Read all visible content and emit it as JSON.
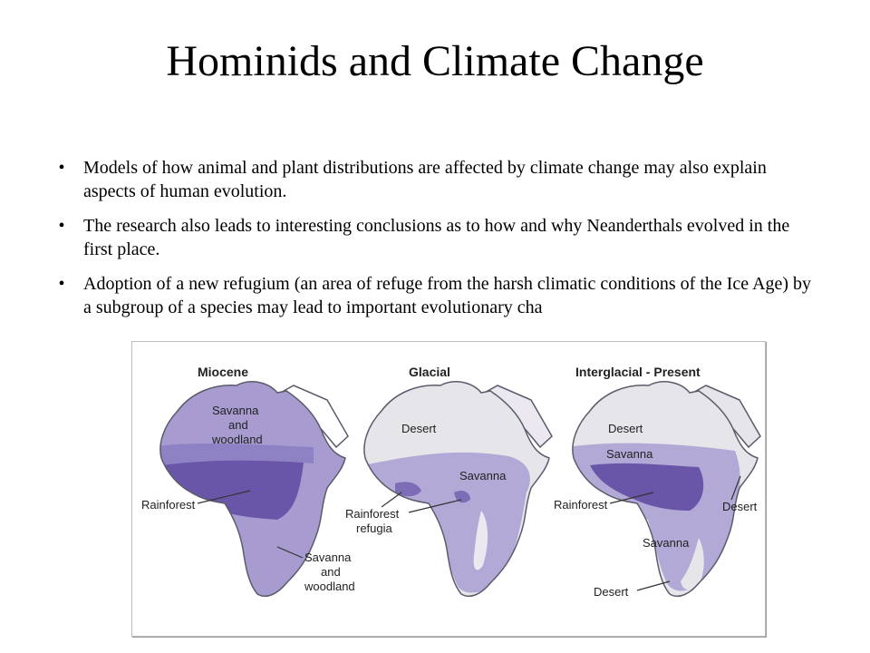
{
  "slide": {
    "title": "Hominids and Climate Change",
    "bullet_char": "•",
    "bullets": [
      "Models of how animal and plant distributions are affected by climate change may also explain aspects of human evolution.",
      "The research also leads to interesting conclusions as to how and why Neanderthals evolved in the first place.",
      "Adoption of a new refugium (an area of refuge from the harsh climatic conditions of the Ice Age) by a subgroup of a species may lead to important evolutionary cha"
    ]
  },
  "figure": {
    "colors": {
      "outline": "#5b5b6b",
      "desert": "#e6e6ea",
      "savanna": "#b3a9d6",
      "savanna_woodland": "#a79bd0",
      "rainforest": "#6a56a8",
      "refugia": "#7d6cb6",
      "light_desert": "#ebe8f0"
    },
    "maps": [
      {
        "title": "Miocene",
        "labels": {
          "savanna_woodland_top": [
            "Savanna",
            "and",
            "woodland"
          ],
          "rainforest": "Rainforest",
          "savanna_woodland_bottom": [
            "Savanna",
            "and",
            "woodland"
          ]
        }
      },
      {
        "title": "Glacial",
        "labels": {
          "desert": "Desert",
          "savanna": "Savanna",
          "rainforest_refugia": [
            "Rainforest",
            "refugia"
          ]
        }
      },
      {
        "title": "Interglacial - Present",
        "labels": {
          "desert_top": "Desert",
          "savanna_top": "Savanna",
          "rainforest": "Rainforest",
          "savanna_bottom": "Savanna",
          "desert_right": "Desert",
          "desert_bottom": "Desert"
        }
      }
    ]
  }
}
